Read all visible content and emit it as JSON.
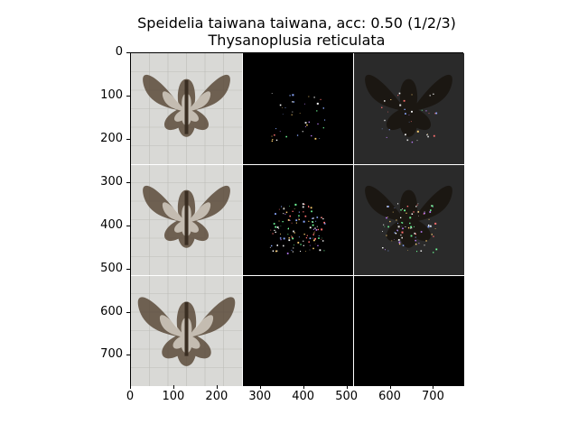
{
  "figure": {
    "title_line_1": "Speidelia taiwana taiwana, acc: 0.50 (1/2/3)",
    "title_line_2": "Thysanoplusia reticulata"
  },
  "axes": {
    "y_ticks": [
      "0",
      "100",
      "200",
      "300",
      "400",
      "500",
      "600",
      "700"
    ],
    "x_ticks": [
      "0",
      "100",
      "200",
      "300",
      "400",
      "500",
      "600",
      "700"
    ],
    "y_tick_values": [
      0,
      100,
      200,
      300,
      400,
      500,
      600,
      700
    ],
    "x_tick_values": [
      0,
      100,
      200,
      300,
      400,
      500,
      600,
      700
    ],
    "x_range": [
      0,
      770
    ],
    "y_range": [
      0,
      770
    ]
  },
  "grid": {
    "rows": 3,
    "columns": 3,
    "row_descriptions": [
      "moth sample 1",
      "moth sample 2",
      "moth sample 3"
    ],
    "column_types": [
      "original",
      "saliency-mask",
      "masked-original"
    ]
  },
  "colors": {
    "background": "#ffffff",
    "specimen_background": "#d9d9d6",
    "mask_background": "#000000",
    "masked_background": "#2a2a2a",
    "moth_brown": "#5a4a3a"
  }
}
